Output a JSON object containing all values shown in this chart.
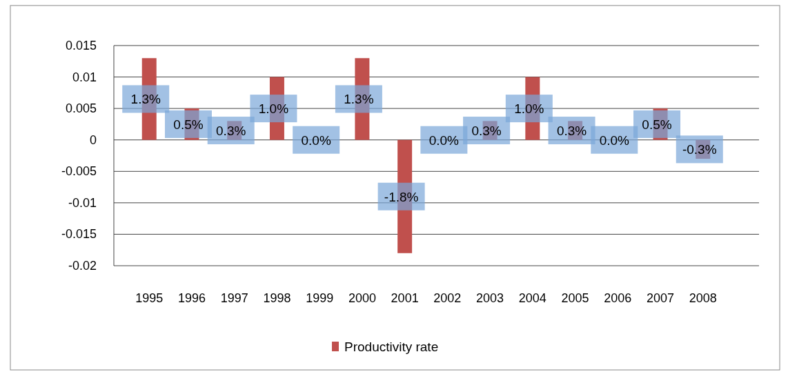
{
  "chart_data": {
    "type": "bar",
    "categories": [
      "1995",
      "1996",
      "1997",
      "1998",
      "1999",
      "2000",
      "2001",
      "2002",
      "2003",
      "2004",
      "2005",
      "2006",
      "2007",
      "2008"
    ],
    "series": [
      {
        "name": "Productivity rate",
        "color": "#c0504d",
        "values": [
          0.013,
          0.005,
          0.003,
          0.01,
          0.0,
          0.013,
          -0.018,
          0.0,
          0.003,
          0.01,
          0.003,
          0.0,
          0.005,
          -0.003
        ],
        "value_labels": [
          "1.3%",
          "0.5%",
          "0.3%",
          "1.0%",
          "0.0%",
          "1.3%",
          "-1.8%",
          "0.0%",
          "0.3%",
          "1.0%",
          "0.3%",
          "0.0%",
          "0.5%",
          "-0.3%"
        ]
      }
    ],
    "ylim": [
      -0.02,
      0.015
    ],
    "yticks": [
      -0.02,
      -0.015,
      -0.01,
      -0.005,
      0,
      0.005,
      0.01,
      0.015
    ],
    "grid": "y",
    "legend": "bottom"
  }
}
